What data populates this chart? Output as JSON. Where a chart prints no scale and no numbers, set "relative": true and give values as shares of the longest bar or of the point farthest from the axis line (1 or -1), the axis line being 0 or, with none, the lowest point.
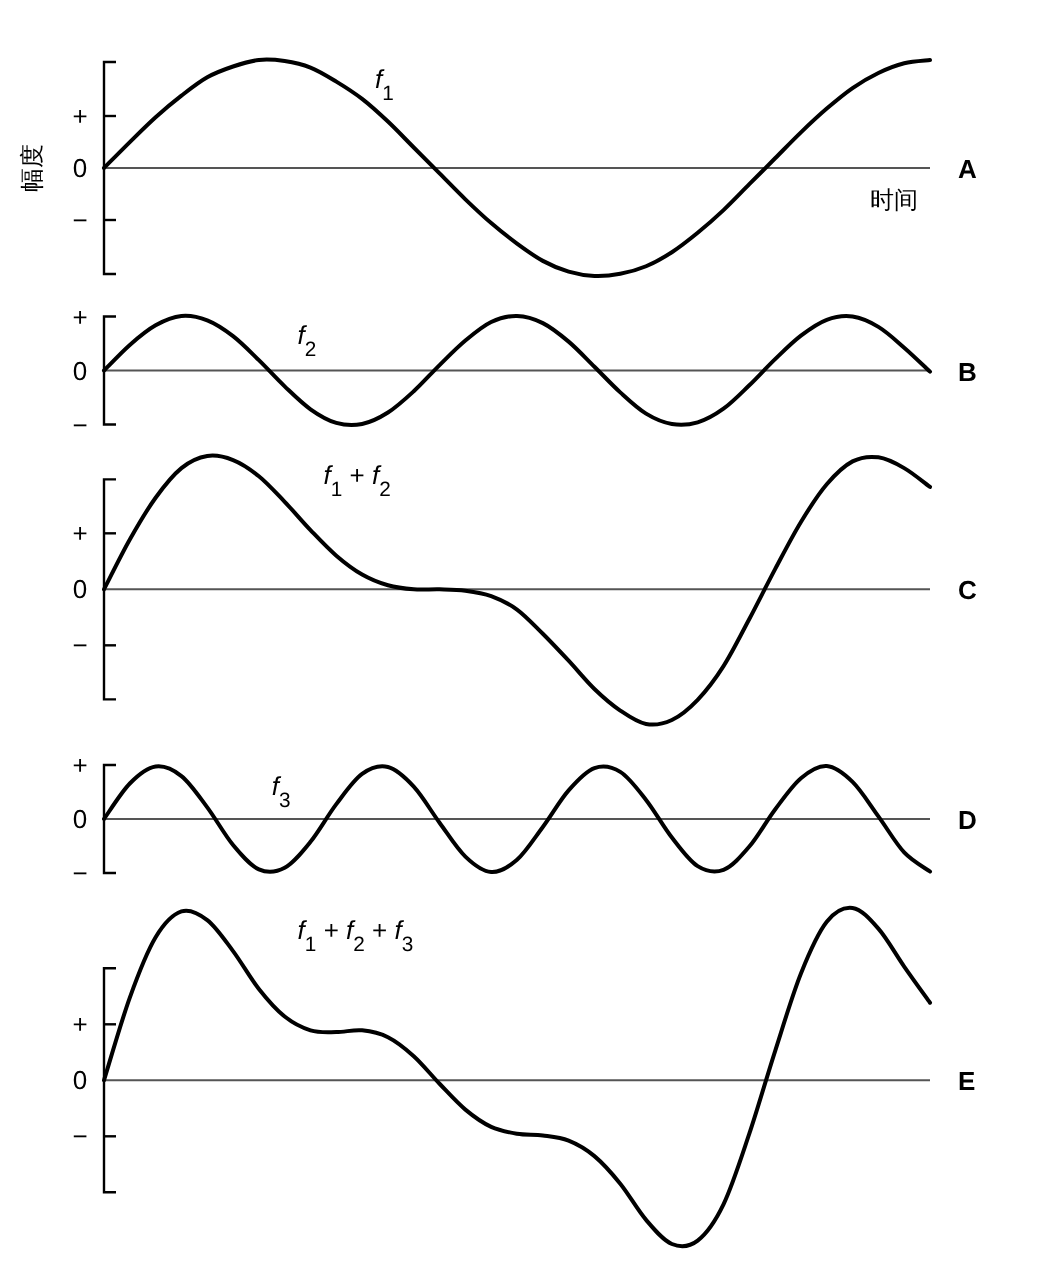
{
  "chart_data": [
    {
      "type": "line",
      "relative": true,
      "xlabel": "时间",
      "ylabel": "幅度",
      "annotations": [
        "A",
        "+",
        "0",
        "−"
      ],
      "categories": [
        null,
        null,
        null,
        null,
        null,
        null,
        null,
        null,
        null,
        null,
        null,
        null,
        null,
        null,
        null,
        null,
        null,
        null,
        null,
        null,
        null,
        null,
        null,
        null,
        null,
        null,
        null,
        null,
        null,
        null,
        null,
        null,
        null
      ],
      "series": [
        {
          "name": "*f*$_{1}$",
          "color": "#000000",
          "values": [
            0,
            0.24,
            0.47,
            0.67,
            0.84,
            0.94,
            1.0,
            0.99,
            0.93,
            0.8,
            0.64,
            0.43,
            0.19,
            -0.05,
            -0.29,
            -0.51,
            -0.7,
            -0.86,
            -0.96,
            -1.0,
            -0.98,
            -0.91,
            -0.78,
            -0.6,
            -0.39,
            -0.15,
            0.09,
            0.33,
            0.55,
            0.74,
            0.88,
            0.97,
            1.0
          ]
        }
      ]
    },
    {
      "type": "line",
      "relative": true,
      "annotations": [
        "B",
        "+",
        "0",
        "−"
      ],
      "categories": [
        null,
        null,
        null,
        null,
        null,
        null,
        null,
        null,
        null,
        null,
        null,
        null,
        null,
        null,
        null,
        null,
        null,
        null,
        null,
        null,
        null,
        null,
        null,
        null,
        null,
        null,
        null,
        null,
        null,
        null,
        null,
        null,
        null
      ],
      "series": [
        {
          "name": "*f*$_{2}$",
          "color": "#000000",
          "values": [
            0,
            0.47,
            0.83,
            1.0,
            0.92,
            0.63,
            0.19,
            -0.29,
            -0.71,
            -0.96,
            -0.98,
            -0.77,
            -0.38,
            0.1,
            0.55,
            0.89,
            1.0,
            0.87,
            0.53,
            0.07,
            -0.4,
            -0.79,
            -0.98,
            -0.95,
            -0.7,
            -0.27,
            0.21,
            0.64,
            0.93,
            0.99,
            0.8,
            0.42,
            -0.02
          ]
        }
      ]
    },
    {
      "type": "line",
      "relative": true,
      "annotations": [
        "C",
        "+",
        "0",
        "−"
      ],
      "categories": [
        null,
        null,
        null,
        null,
        null,
        null,
        null,
        null,
        null,
        null,
        null,
        null,
        null,
        null,
        null,
        null,
        null,
        null,
        null,
        null,
        null,
        null,
        null,
        null,
        null,
        null,
        null,
        null,
        null,
        null,
        null,
        null,
        null
      ],
      "series": [
        {
          "name": "*f*$_{1}$ + *f*$_{2}$",
          "color": "#000000",
          "values": [
            0,
            0.37,
            0.68,
            0.9,
            0.99,
            0.96,
            0.84,
            0.65,
            0.44,
            0.25,
            0.11,
            0.03,
            0,
            0,
            -0.01,
            -0.05,
            -0.15,
            -0.33,
            -0.53,
            -0.74,
            -0.9,
            -1.0,
            -0.97,
            -0.82,
            -0.57,
            -0.22,
            0.15,
            0.5,
            0.78,
            0.95,
            0.98,
            0.9,
            0.76
          ]
        }
      ]
    },
    {
      "type": "line",
      "relative": true,
      "annotations": [
        "D",
        "+",
        "0",
        "−"
      ],
      "categories": [
        null,
        null,
        null,
        null,
        null,
        null,
        null,
        null,
        null,
        null,
        null,
        null,
        null,
        null,
        null,
        null,
        null,
        null,
        null,
        null,
        null,
        null,
        null,
        null,
        null,
        null,
        null,
        null,
        null,
        null,
        null,
        null,
        null
      ],
      "series": [
        {
          "name": "*f*$_{3}$",
          "color": "#000000",
          "values": [
            0,
            0.67,
            0.99,
            0.81,
            0.22,
            -0.49,
            -0.95,
            -0.92,
            -0.43,
            0.28,
            0.85,
            0.98,
            0.61,
            -0.07,
            -0.71,
            -1.0,
            -0.77,
            -0.15,
            0.54,
            0.96,
            0.89,
            0.36,
            -0.35,
            -0.89,
            -0.96,
            -0.52,
            0.18,
            0.77,
            1.0,
            0.7,
            0.05,
            -0.63,
            -0.99
          ]
        }
      ]
    },
    {
      "type": "line",
      "relative": true,
      "annotations": [
        "E",
        "+",
        "0",
        "−"
      ],
      "categories": [
        null,
        null,
        null,
        null,
        null,
        null,
        null,
        null,
        null,
        null,
        null,
        null,
        null,
        null,
        null,
        null,
        null,
        null,
        null,
        null,
        null,
        null,
        null,
        null,
        null,
        null,
        null,
        null,
        null,
        null,
        null,
        null,
        null
      ],
      "series": [
        {
          "name": "*f*$_{1}$ + *f*$_{2}$ + *f*$_{3}$",
          "color": "#000000",
          "values": [
            0,
            0.48,
            0.83,
            0.98,
            0.93,
            0.75,
            0.53,
            0.37,
            0.29,
            0.28,
            0.29,
            0.25,
            0.14,
            -0.02,
            -0.17,
            -0.27,
            -0.31,
            -0.32,
            -0.35,
            -0.44,
            -0.6,
            -0.81,
            -0.95,
            -0.93,
            -0.72,
            -0.31,
            0.17,
            0.62,
            0.92,
            1.0,
            0.88,
            0.66,
            0.45
          ]
        }
      ]
    }
  ]
}
